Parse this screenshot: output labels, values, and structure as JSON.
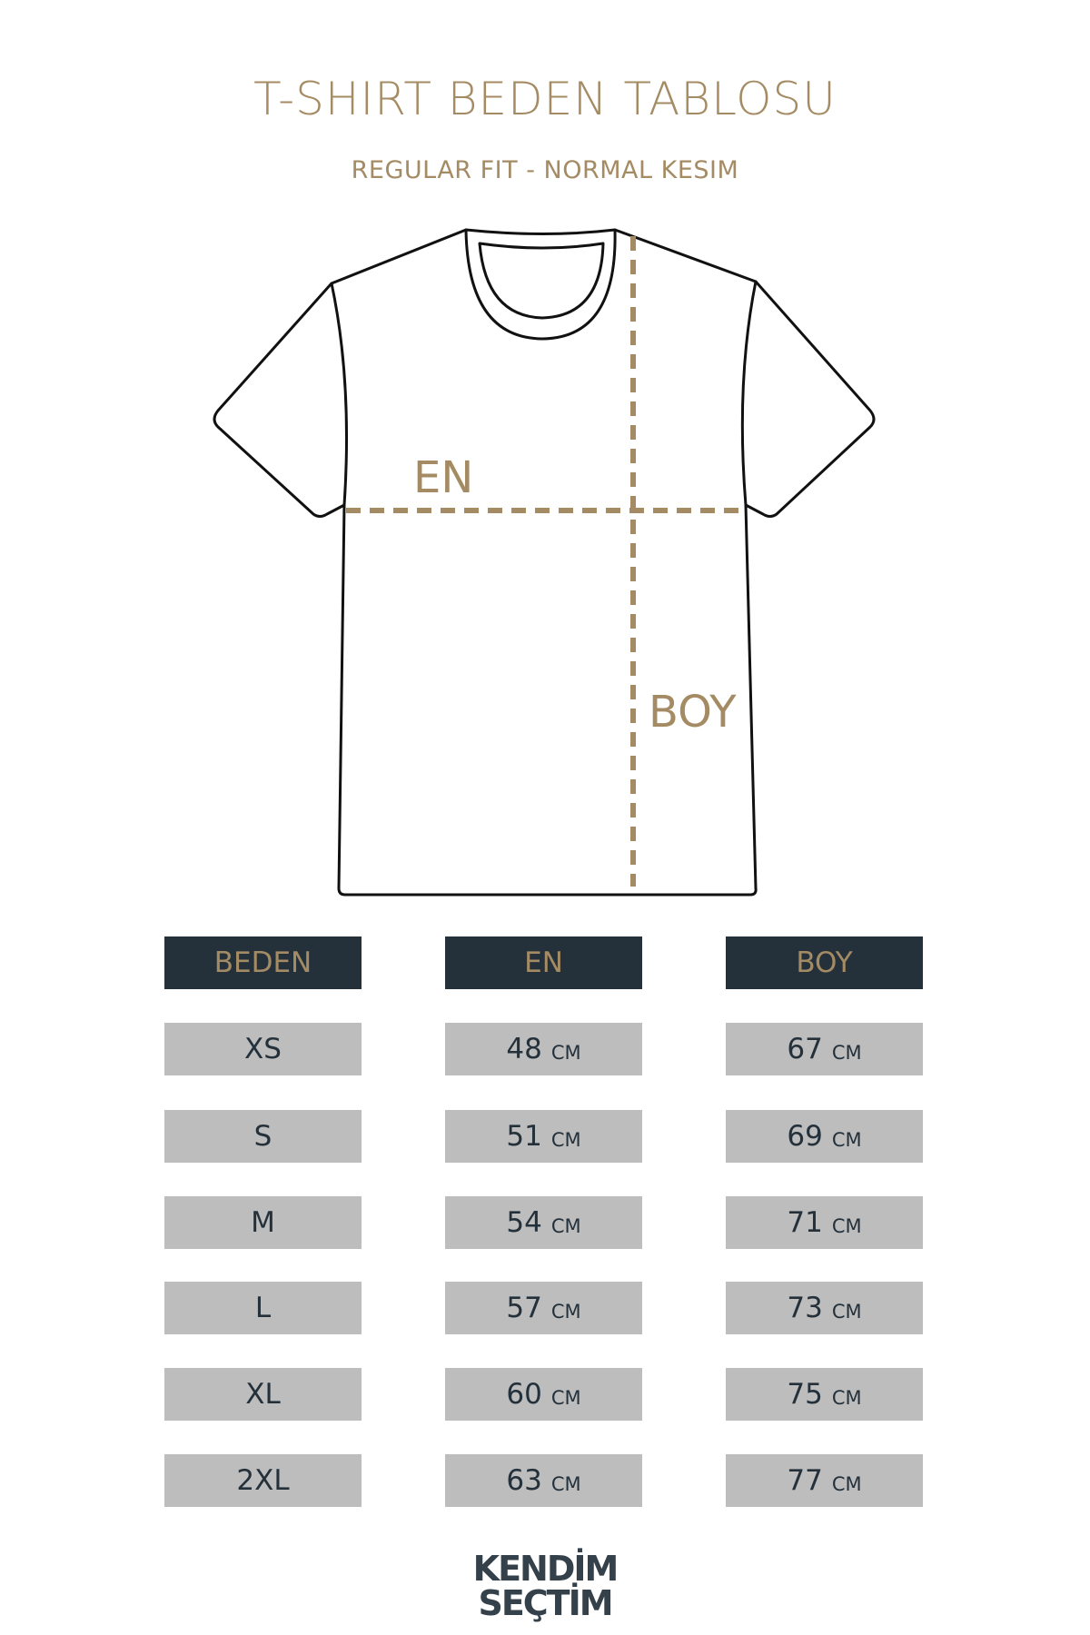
{
  "title": "T-SHIRT BEDEN TABLOSU",
  "subtitle": "REGULAR FIT - NORMAL KESIM",
  "diagram": {
    "width_label": "EN",
    "length_label": "BOY"
  },
  "colors": {
    "gold": "#a48b64",
    "dark": "#24313b",
    "gray": "#bdbdbd"
  },
  "table": {
    "headers": [
      "BEDEN",
      "EN",
      "BOY"
    ],
    "unit": "CM",
    "rows": [
      {
        "size": "XS",
        "en": "48",
        "boy": "67"
      },
      {
        "size": "S",
        "en": "51",
        "boy": "69"
      },
      {
        "size": "M",
        "en": "54",
        "boy": "71"
      },
      {
        "size": "L",
        "en": "57",
        "boy": "73"
      },
      {
        "size": "XL",
        "en": "60",
        "boy": "75"
      },
      {
        "size": "2XL",
        "en": "63",
        "boy": "77"
      }
    ]
  },
  "logo": {
    "line1": "KENDİM",
    "line2": "SEÇTİM"
  }
}
